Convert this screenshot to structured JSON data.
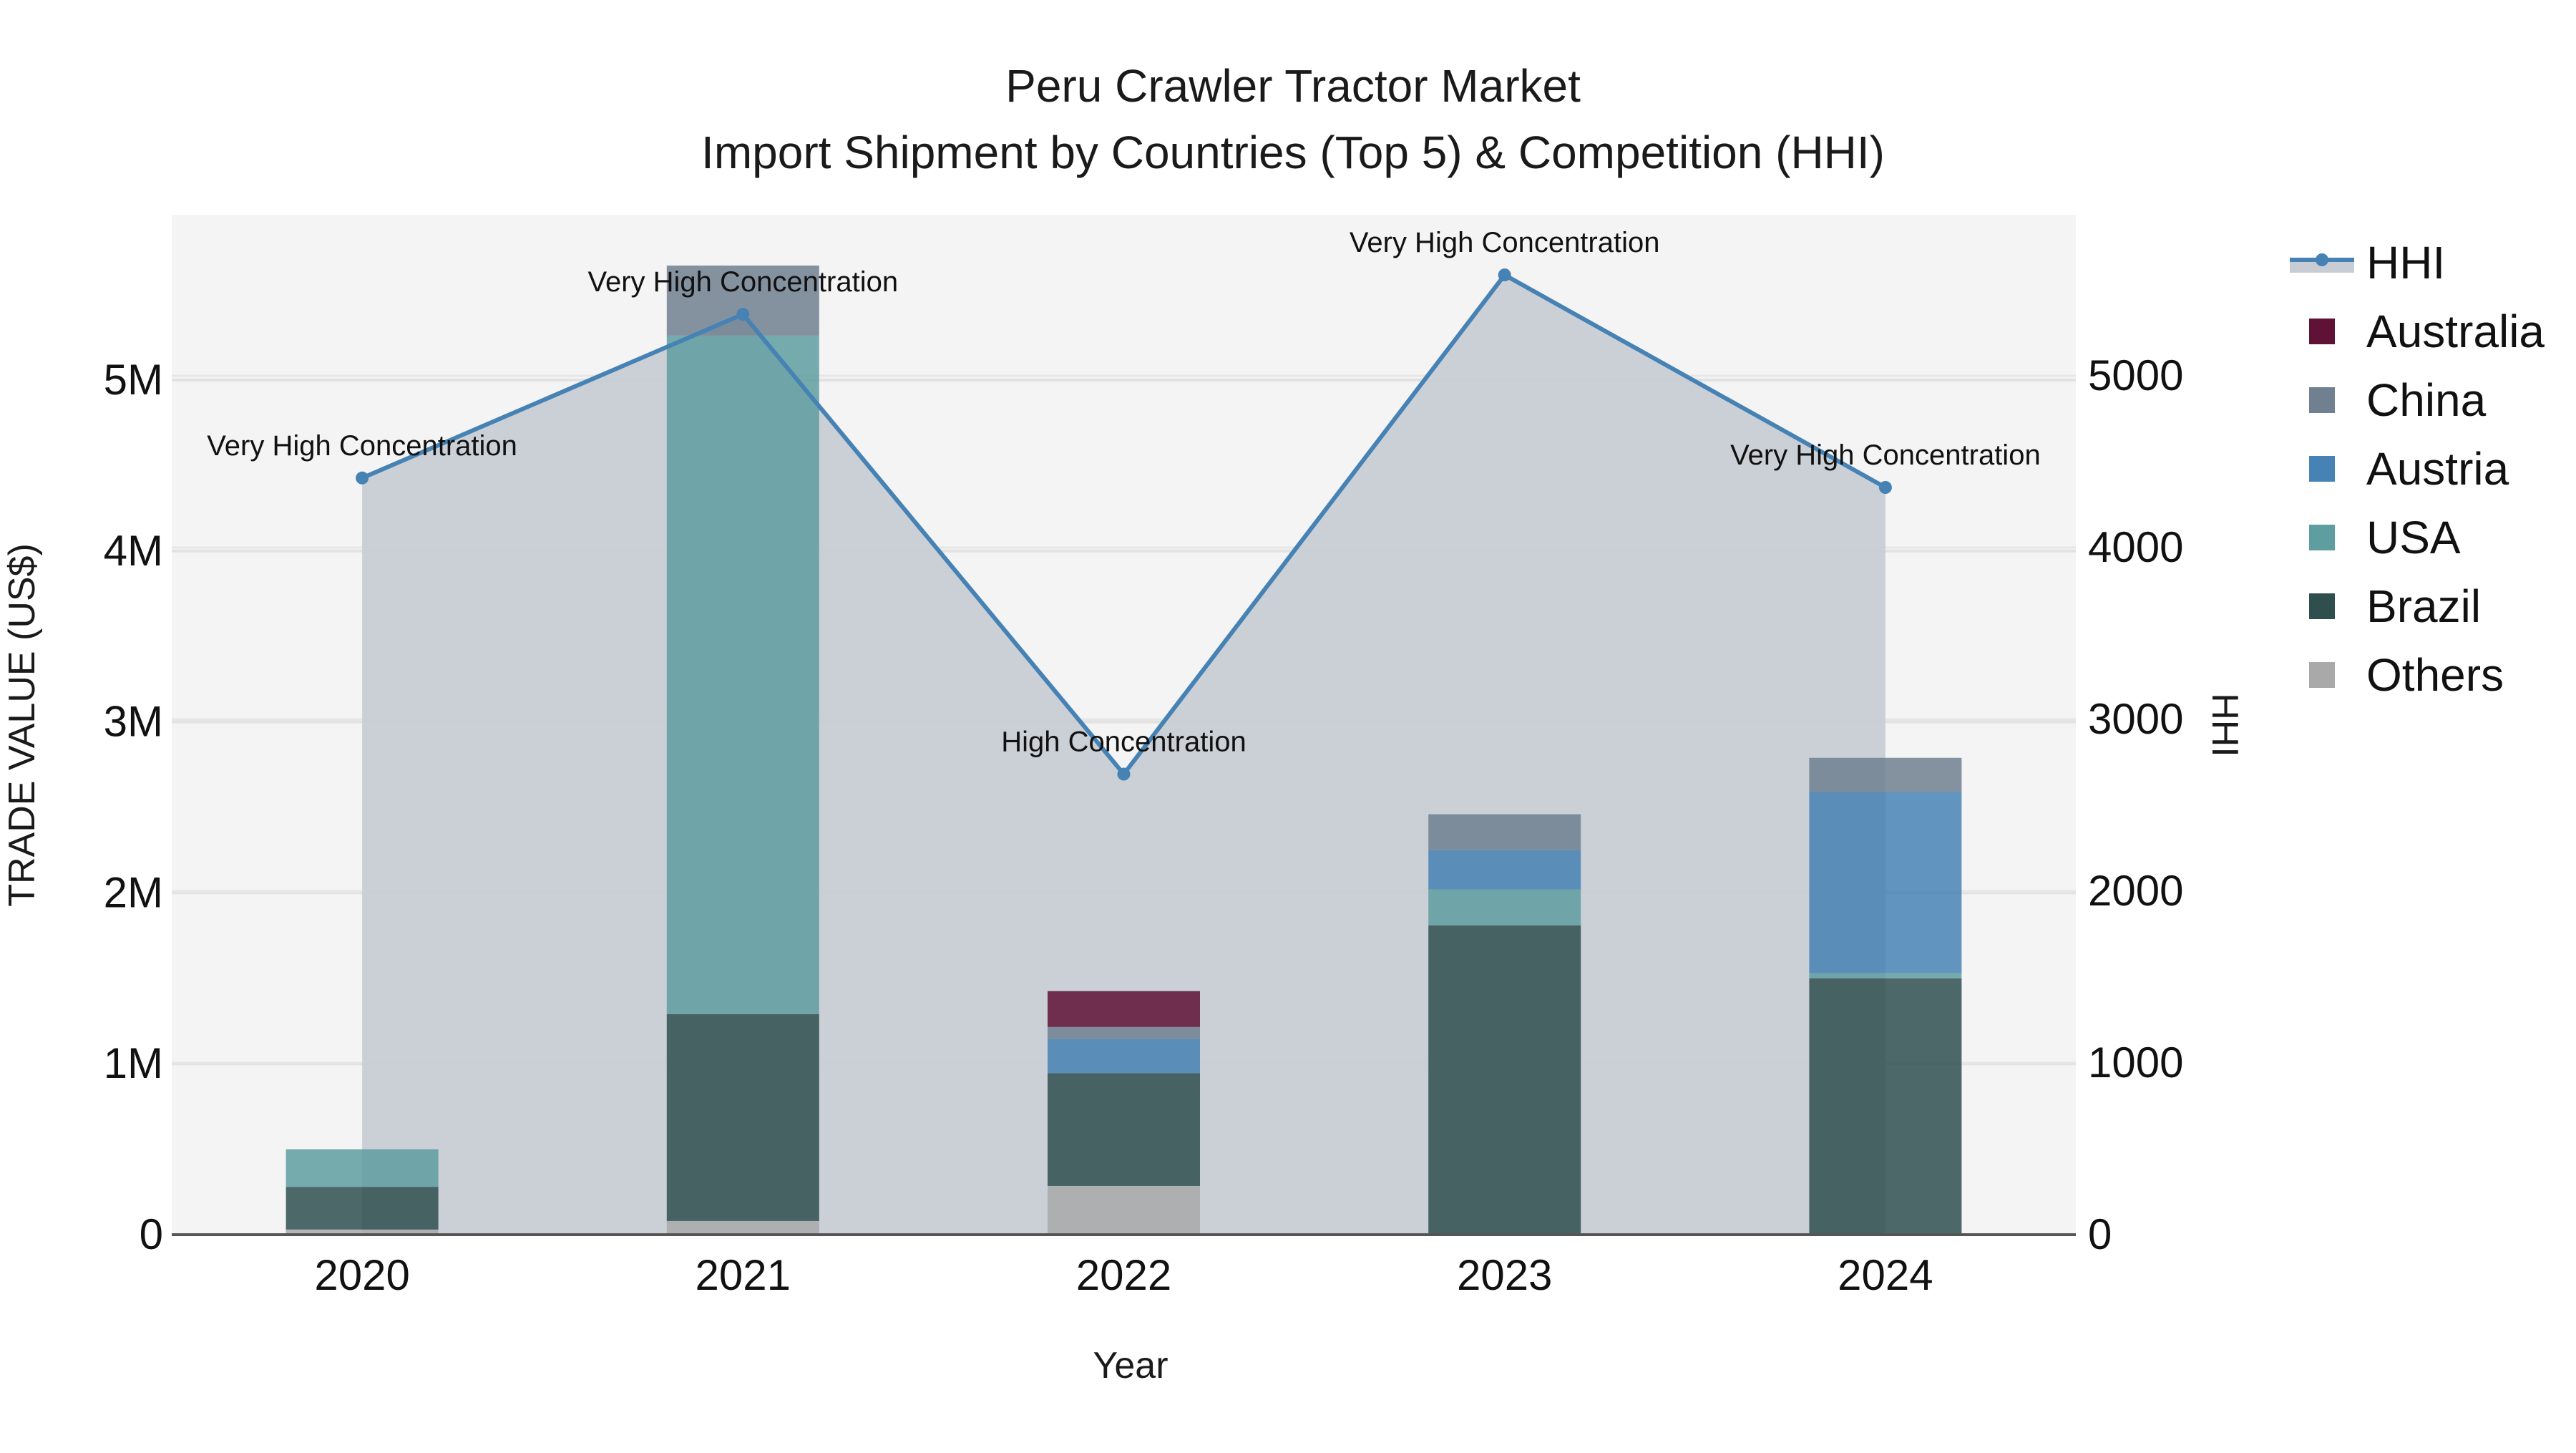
{
  "chart_data": {
    "type": "bar",
    "title": "Peru Crawler Tractor Market",
    "subtitle": "Import Shipment by Countries (Top 5) & Competition (HHI)",
    "xlabel": "Year",
    "ylabel": "TRADE VALUE (US$)",
    "y2label": "HHI",
    "categories": [
      "2020",
      "2021",
      "2022",
      "2023",
      "2024"
    ],
    "ylim": [
      0,
      5.95
    ],
    "y_unit": "M US$",
    "y_ticks": [
      0,
      1,
      2,
      3,
      4,
      5
    ],
    "y_tick_labels": [
      "0",
      "1M",
      "2M",
      "3M",
      "4M",
      "5M"
    ],
    "y2lim": [
      0,
      5975
    ],
    "y2_ticks": [
      0,
      1000,
      2000,
      3000,
      4000,
      5000
    ],
    "y2_tick_labels": [
      "0",
      "1000",
      "2000",
      "3000",
      "4000",
      "5000"
    ],
    "grid": true,
    "barmode": "stack",
    "legend_position": "right",
    "series": [
      {
        "name": "Others",
        "color": "#A9A9A9",
        "values": [
          0.03,
          0.08,
          0.285,
          0.0,
          0.0
        ]
      },
      {
        "name": "Brazil",
        "color": "#2F4F4F",
        "values": [
          0.25,
          1.21,
          0.66,
          1.81,
          1.5
        ]
      },
      {
        "name": "USA",
        "color": "#5F9EA0",
        "values": [
          0.22,
          3.97,
          0.0,
          0.21,
          0.03
        ]
      },
      {
        "name": "Austria",
        "color": "#4682B4",
        "values": [
          0.0,
          0.0,
          0.2,
          0.23,
          1.06
        ]
      },
      {
        "name": "China",
        "color": "#708090",
        "values": [
          0.0,
          0.41,
          0.07,
          0.21,
          0.2
        ]
      },
      {
        "name": "Australia",
        "color": "#5F1235",
        "values": [
          0.0,
          0.0,
          0.21,
          0.0,
          0.0
        ]
      }
    ],
    "line_series": {
      "name": "HHI",
      "color": "#4682B4",
      "fill_color": "#C8CDD5",
      "values": [
        4405,
        5358,
        2681,
        5587,
        4350
      ],
      "annotations": [
        "Very High Concentration",
        "Very High Concentration",
        "High Concentration",
        "Very High Concentration",
        "Very High Concentration"
      ]
    },
    "legend": [
      "HHI",
      "Australia",
      "China",
      "Austria",
      "USA",
      "Brazil",
      "Others"
    ]
  }
}
